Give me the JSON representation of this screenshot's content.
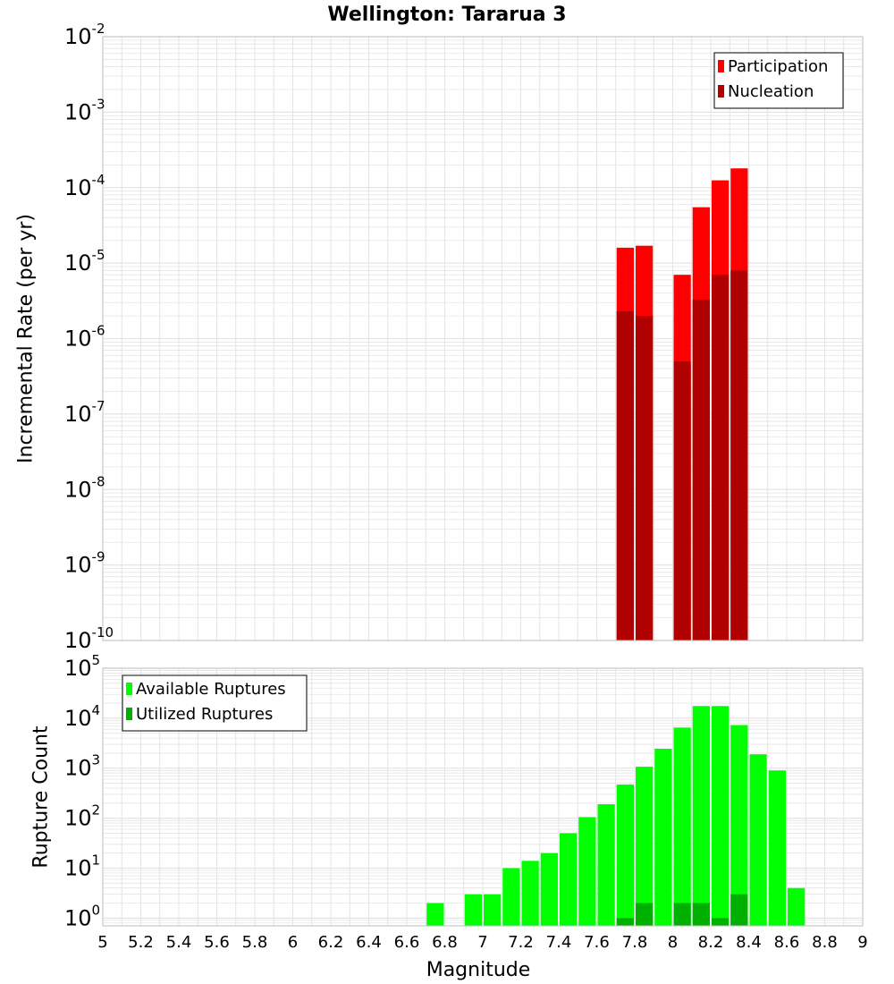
{
  "title": "Wellington: Tararua 3",
  "colors": {
    "participation": "#ff0000",
    "nucleation": "#b00000",
    "available": "#00ff00",
    "utilized": "#00b000",
    "grid": "#e4e4e4",
    "frame": "#bfbfbf"
  },
  "chart_data": [
    {
      "type": "bar",
      "panel": "rates",
      "ylabel": "Incremental Rate (per yr)",
      "yscale": "log",
      "ylim": [
        1e-10,
        0.01
      ],
      "xlim": [
        5,
        9
      ],
      "bin_width": 0.1,
      "ytick_exponents": [
        "-10",
        "-9",
        "-8",
        "-7",
        "-6",
        "-5",
        "-4",
        "-3",
        "-2"
      ],
      "legend": {
        "position": "top-right",
        "entries": [
          "Participation",
          "Nucleation"
        ]
      },
      "series": [
        {
          "name": "Participation",
          "color": "#ff0000",
          "points": [
            {
              "x": 7.75,
              "y": 1.6e-05
            },
            {
              "x": 7.85,
              "y": 1.7e-05
            },
            {
              "x": 8.05,
              "y": 7e-06
            },
            {
              "x": 8.15,
              "y": 5.5e-05
            },
            {
              "x": 8.25,
              "y": 0.000125
            },
            {
              "x": 8.35,
              "y": 0.00018
            }
          ]
        },
        {
          "name": "Nucleation",
          "color": "#b00000",
          "points": [
            {
              "x": 7.75,
              "y": 2.3e-06
            },
            {
              "x": 7.85,
              "y": 2e-06
            },
            {
              "x": 8.05,
              "y": 5e-07
            },
            {
              "x": 8.15,
              "y": 3.3e-06
            },
            {
              "x": 8.25,
              "y": 7e-06
            },
            {
              "x": 8.35,
              "y": 8e-06
            }
          ]
        }
      ]
    },
    {
      "type": "bar",
      "panel": "counts",
      "xlabel": "Magnitude",
      "ylabel": "Rupture Count",
      "yscale": "log",
      "ylim": [
        0.7,
        100000
      ],
      "xlim": [
        5,
        9
      ],
      "bin_width": 0.1,
      "ytick_exponents": [
        "0",
        "1",
        "2",
        "3",
        "4",
        "5"
      ],
      "xticks": [
        "5",
        "5.2",
        "5.4",
        "5.6",
        "5.8",
        "6",
        "6.2",
        "6.4",
        "6.6",
        "6.8",
        "7",
        "7.2",
        "7.4",
        "7.6",
        "7.8",
        "8",
        "8.2",
        "8.4",
        "8.6",
        "8.8",
        "9"
      ],
      "legend": {
        "position": "top-left",
        "entries": [
          "Available Ruptures",
          "Utilized Ruptures"
        ]
      },
      "series": [
        {
          "name": "Available Ruptures",
          "color": "#00ff00",
          "points": [
            {
              "x": 6.75,
              "y": 2
            },
            {
              "x": 6.95,
              "y": 3
            },
            {
              "x": 7.05,
              "y": 3
            },
            {
              "x": 7.15,
              "y": 10
            },
            {
              "x": 7.25,
              "y": 14
            },
            {
              "x": 7.35,
              "y": 20
            },
            {
              "x": 7.45,
              "y": 50
            },
            {
              "x": 7.55,
              "y": 105
            },
            {
              "x": 7.65,
              "y": 190
            },
            {
              "x": 7.75,
              "y": 470
            },
            {
              "x": 7.85,
              "y": 1070
            },
            {
              "x": 7.95,
              "y": 2450
            },
            {
              "x": 8.05,
              "y": 6500
            },
            {
              "x": 8.15,
              "y": 17500
            },
            {
              "x": 8.25,
              "y": 17500
            },
            {
              "x": 8.35,
              "y": 7300
            },
            {
              "x": 8.45,
              "y": 1900
            },
            {
              "x": 8.55,
              "y": 900
            },
            {
              "x": 8.65,
              "y": 4
            }
          ]
        },
        {
          "name": "Utilized Ruptures",
          "color": "#00b000",
          "points": [
            {
              "x": 7.75,
              "y": 1
            },
            {
              "x": 7.85,
              "y": 2
            },
            {
              "x": 8.05,
              "y": 2
            },
            {
              "x": 8.15,
              "y": 2
            },
            {
              "x": 8.25,
              "y": 1
            },
            {
              "x": 8.35,
              "y": 3
            }
          ]
        }
      ]
    }
  ]
}
